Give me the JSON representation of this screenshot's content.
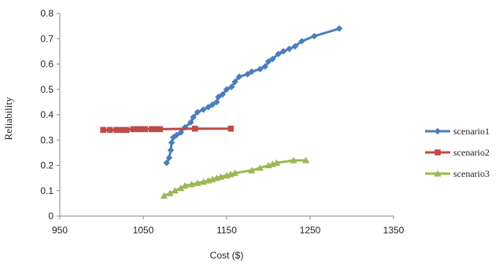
{
  "chart_data": {
    "type": "line",
    "title": "",
    "xlabel": "Cost ($)",
    "ylabel": "Reliability",
    "xlim": [
      950,
      1350
    ],
    "ylim": [
      0,
      0.8
    ],
    "x_ticks": [
      "950",
      "1050",
      "1150",
      "1250",
      "1350"
    ],
    "y_ticks": [
      "0",
      "0.1",
      "0.2",
      "0.3",
      "0.4",
      "0.5",
      "0.6",
      "0.7",
      "0.8"
    ],
    "grid": false,
    "legend_position": "right",
    "series": [
      {
        "name": "scenario1",
        "color": "#4a7ebb",
        "marker": "diamond",
        "points": [
          [
            1078,
            0.21
          ],
          [
            1081,
            0.23
          ],
          [
            1083,
            0.26
          ],
          [
            1084,
            0.29
          ],
          [
            1086,
            0.31
          ],
          [
            1090,
            0.32
          ],
          [
            1095,
            0.33
          ],
          [
            1100,
            0.35
          ],
          [
            1107,
            0.37
          ],
          [
            1110,
            0.39
          ],
          [
            1115,
            0.41
          ],
          [
            1122,
            0.42
          ],
          [
            1128,
            0.43
          ],
          [
            1133,
            0.44
          ],
          [
            1138,
            0.45
          ],
          [
            1140,
            0.47
          ],
          [
            1145,
            0.48
          ],
          [
            1150,
            0.5
          ],
          [
            1156,
            0.51
          ],
          [
            1160,
            0.53
          ],
          [
            1165,
            0.55
          ],
          [
            1175,
            0.56
          ],
          [
            1180,
            0.57
          ],
          [
            1190,
            0.58
          ],
          [
            1196,
            0.59
          ],
          [
            1200,
            0.61
          ],
          [
            1205,
            0.62
          ],
          [
            1212,
            0.64
          ],
          [
            1218,
            0.65
          ],
          [
            1225,
            0.66
          ],
          [
            1232,
            0.67
          ],
          [
            1240,
            0.69
          ],
          [
            1255,
            0.71
          ],
          [
            1285,
            0.74
          ]
        ]
      },
      {
        "name": "scenario2",
        "color": "#be4b48",
        "marker": "square",
        "points": [
          [
            1002,
            0.34
          ],
          [
            1010,
            0.34
          ],
          [
            1018,
            0.34
          ],
          [
            1025,
            0.34
          ],
          [
            1030,
            0.34
          ],
          [
            1038,
            0.343
          ],
          [
            1045,
            0.343
          ],
          [
            1052,
            0.343
          ],
          [
            1060,
            0.343
          ],
          [
            1065,
            0.343
          ],
          [
            1070,
            0.343
          ],
          [
            1112,
            0.345
          ],
          [
            1155,
            0.345
          ]
        ]
      },
      {
        "name": "scenario3",
        "color": "#98b954",
        "marker": "triangle",
        "points": [
          [
            1075,
            0.08
          ],
          [
            1082,
            0.09
          ],
          [
            1088,
            0.1
          ],
          [
            1095,
            0.11
          ],
          [
            1100,
            0.12
          ],
          [
            1108,
            0.125
          ],
          [
            1115,
            0.13
          ],
          [
            1122,
            0.135
          ],
          [
            1128,
            0.14
          ],
          [
            1133,
            0.145
          ],
          [
            1138,
            0.15
          ],
          [
            1143,
            0.155
          ],
          [
            1150,
            0.16
          ],
          [
            1155,
            0.165
          ],
          [
            1160,
            0.17
          ],
          [
            1180,
            0.18
          ],
          [
            1190,
            0.19
          ],
          [
            1200,
            0.2
          ],
          [
            1205,
            0.205
          ],
          [
            1210,
            0.21
          ],
          [
            1230,
            0.22
          ],
          [
            1245,
            0.22
          ]
        ]
      }
    ]
  }
}
